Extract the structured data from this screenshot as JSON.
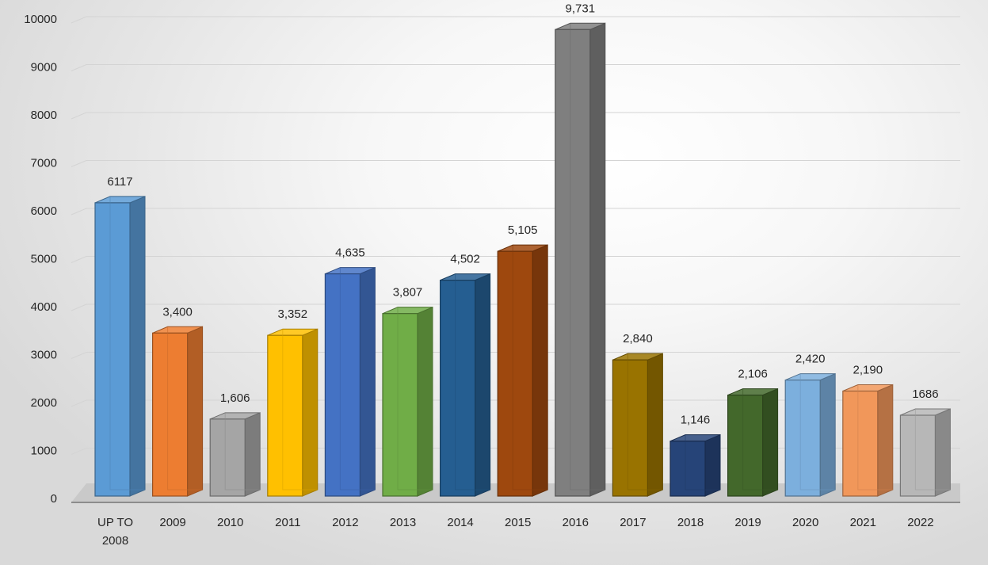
{
  "chart_data": {
    "type": "bar",
    "categories": [
      "UP TO 2008",
      "2009",
      "2010",
      "2011",
      "2012",
      "2013",
      "2014",
      "2015",
      "2016",
      "2017",
      "2018",
      "2019",
      "2020",
      "2021",
      "2022"
    ],
    "values": [
      6117,
      3400,
      1606,
      3352,
      4635,
      3807,
      4502,
      5105,
      9731,
      2840,
      1146,
      2106,
      2420,
      2190,
      1686
    ],
    "data_labels": [
      "6117",
      "3,400",
      "1,606",
      "3,352",
      "4,635",
      "3,807",
      "4,502",
      "5,105",
      "9,731",
      "2,840",
      "1,146",
      "2,106",
      "2,420",
      "2,190",
      "1686"
    ],
    "y_ticks": [
      "0",
      "1000",
      "2000",
      "3000",
      "4000",
      "5000",
      "6000",
      "7000",
      "8000",
      "9000",
      "10000"
    ],
    "ylim": [
      0,
      10000
    ],
    "grid": true,
    "style": "3d-column",
    "colors": [
      "#5b9bd5",
      "#ed7d31",
      "#a5a5a5",
      "#ffc000",
      "#4472c4",
      "#70ad47",
      "#255e91",
      "#9e480e",
      "#7f7f7f",
      "#997300",
      "#264478",
      "#43682b",
      "#7cafdd",
      "#f1975a",
      "#b7b7b7"
    ]
  }
}
